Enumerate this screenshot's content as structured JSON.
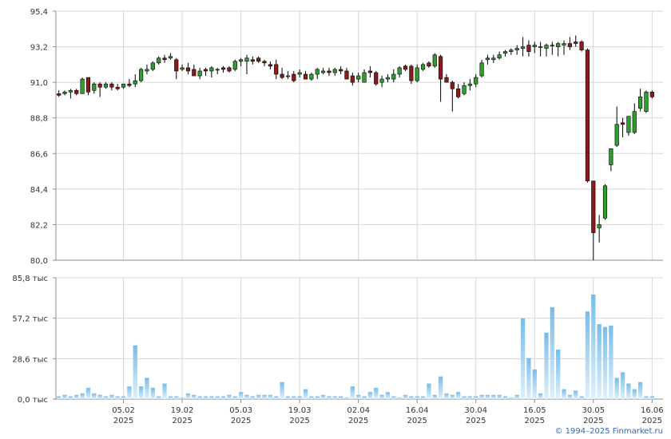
{
  "chart_data": {
    "type": "candlestick",
    "price_panel": {
      "ylim": [
        80.0,
        95.4
      ],
      "y_ticks": [
        "95,4",
        "93,2",
        "91,0",
        "88,8",
        "86,6",
        "84,4",
        "82,2",
        "80,0"
      ],
      "grid": true
    },
    "volume_panel": {
      "ylim": [
        0,
        85.8
      ],
      "y_ticks": [
        "85,8 тыс",
        "57,2 тыс",
        "28,6 тыс",
        "0,0 тыс"
      ],
      "grid": true
    },
    "x_ticks": [
      {
        "day": "05.02",
        "year": "2025",
        "index": 11
      },
      {
        "day": "19.02",
        "year": "2025",
        "index": 21
      },
      {
        "day": "05.03",
        "year": "2025",
        "index": 31
      },
      {
        "day": "19.03",
        "year": "2025",
        "index": 41
      },
      {
        "day": "02.04",
        "year": "2025",
        "index": 51
      },
      {
        "day": "16.04",
        "year": "2025",
        "index": 61
      },
      {
        "day": "30.04",
        "year": "2025",
        "index": 71
      },
      {
        "day": "16.05",
        "year": "2025",
        "index": 81
      },
      {
        "day": "30.05",
        "year": "2025",
        "index": 91
      },
      {
        "day": "16.06",
        "year": "2025",
        "index": 101
      }
    ],
    "candles": [
      [
        90.3,
        90.5,
        90.1,
        90.2
      ],
      [
        90.3,
        90.5,
        90.2,
        90.4
      ],
      [
        90.4,
        90.6,
        90.0,
        90.5
      ],
      [
        90.5,
        90.6,
        90.2,
        90.3
      ],
      [
        90.3,
        91.3,
        90.3,
        91.2
      ],
      [
        91.3,
        91.3,
        90.2,
        90.4
      ],
      [
        90.5,
        91.0,
        90.3,
        90.9
      ],
      [
        90.9,
        91.0,
        90.1,
        90.7
      ],
      [
        90.7,
        91.0,
        90.6,
        90.9
      ],
      [
        90.9,
        91.0,
        90.5,
        90.7
      ],
      [
        90.7,
        90.9,
        90.5,
        90.6
      ],
      [
        90.7,
        90.9,
        90.6,
        90.9
      ],
      [
        90.9,
        91.2,
        90.7,
        90.8
      ],
      [
        90.9,
        91.5,
        90.7,
        91.1
      ],
      [
        91.1,
        91.9,
        91.0,
        91.8
      ],
      [
        91.7,
        92.1,
        91.5,
        91.8
      ],
      [
        91.8,
        92.3,
        91.7,
        92.2
      ],
      [
        92.2,
        92.6,
        92.1,
        92.5
      ],
      [
        92.5,
        92.7,
        92.2,
        92.4
      ],
      [
        92.5,
        92.8,
        92.4,
        92.6
      ],
      [
        92.4,
        92.5,
        91.2,
        91.7
      ],
      [
        91.8,
        92.1,
        91.7,
        91.9
      ],
      [
        91.9,
        92.2,
        91.5,
        91.7
      ],
      [
        91.8,
        92.1,
        91.4,
        91.4
      ],
      [
        91.4,
        91.9,
        91.2,
        91.7
      ],
      [
        91.8,
        91.9,
        91.4,
        91.7
      ],
      [
        91.7,
        92.0,
        91.3,
        91.9
      ],
      [
        91.8,
        91.9,
        91.5,
        91.8
      ],
      [
        91.9,
        92.0,
        91.6,
        91.8
      ],
      [
        91.9,
        92.0,
        91.6,
        91.7
      ],
      [
        91.8,
        92.4,
        91.7,
        92.3
      ],
      [
        92.3,
        92.5,
        92.0,
        92.4
      ],
      [
        92.3,
        92.7,
        91.5,
        92.5
      ],
      [
        92.4,
        92.6,
        92.1,
        92.3
      ],
      [
        92.5,
        92.6,
        92.2,
        92.3
      ],
      [
        92.3,
        92.4,
        92.0,
        92.2
      ],
      [
        92.1,
        92.3,
        91.8,
        92.0
      ],
      [
        92.1,
        92.4,
        91.2,
        91.5
      ],
      [
        91.5,
        91.9,
        91.2,
        91.3
      ],
      [
        91.4,
        91.7,
        91.2,
        91.4
      ],
      [
        91.5,
        91.7,
        91.0,
        91.1
      ],
      [
        91.5,
        91.8,
        91.3,
        91.6
      ],
      [
        91.5,
        91.7,
        91.2,
        91.2
      ],
      [
        91.2,
        91.6,
        91.1,
        91.5
      ],
      [
        91.5,
        91.9,
        91.2,
        91.8
      ],
      [
        91.6,
        91.9,
        91.5,
        91.7
      ],
      [
        91.7,
        91.9,
        91.4,
        91.6
      ],
      [
        91.6,
        91.9,
        91.4,
        91.8
      ],
      [
        91.8,
        92.0,
        91.5,
        91.7
      ],
      [
        91.7,
        91.9,
        91.3,
        91.2
      ],
      [
        91.4,
        91.6,
        90.8,
        91.0
      ],
      [
        91.2,
        91.6,
        91.0,
        91.4
      ],
      [
        91.0,
        91.8,
        91.0,
        91.6
      ],
      [
        91.7,
        92.0,
        91.3,
        91.6
      ],
      [
        91.6,
        91.7,
        90.8,
        90.9
      ],
      [
        91.0,
        91.4,
        90.7,
        91.2
      ],
      [
        91.2,
        91.5,
        91.0,
        91.3
      ],
      [
        91.2,
        91.8,
        91.0,
        91.5
      ],
      [
        91.5,
        92.0,
        91.3,
        91.9
      ],
      [
        92.0,
        92.1,
        91.7,
        91.8
      ],
      [
        92.0,
        92.1,
        90.9,
        91.1
      ],
      [
        91.1,
        92.1,
        91.0,
        91.9
      ],
      [
        91.8,
        92.2,
        91.7,
        92.1
      ],
      [
        92.2,
        92.3,
        91.9,
        92.0
      ],
      [
        92.0,
        92.8,
        91.9,
        92.7
      ],
      [
        92.6,
        92.7,
        89.8,
        91.2
      ],
      [
        91.3,
        91.5,
        91.1,
        91.0
      ],
      [
        91.0,
        91.1,
        89.2,
        90.6
      ],
      [
        90.6,
        90.9,
        90.0,
        90.1
      ],
      [
        90.3,
        91.0,
        90.2,
        90.8
      ],
      [
        90.8,
        91.2,
        90.5,
        90.9
      ],
      [
        90.9,
        91.5,
        90.7,
        91.3
      ],
      [
        91.4,
        92.4,
        91.3,
        92.2
      ],
      [
        92.4,
        92.7,
        92.1,
        92.5
      ],
      [
        92.4,
        92.7,
        92.2,
        92.5
      ],
      [
        92.5,
        92.9,
        92.4,
        92.7
      ],
      [
        92.8,
        93.0,
        92.6,
        92.9
      ],
      [
        92.9,
        93.1,
        92.7,
        93.0
      ],
      [
        93.0,
        93.3,
        92.7,
        93.1
      ],
      [
        93.1,
        93.8,
        92.6,
        93.2
      ],
      [
        93.3,
        93.6,
        92.6,
        92.9
      ],
      [
        93.2,
        93.5,
        92.8,
        93.3
      ],
      [
        93.2,
        93.5,
        92.6,
        93.2
      ],
      [
        93.1,
        93.4,
        92.6,
        93.3
      ],
      [
        93.3,
        93.5,
        92.7,
        93.3
      ],
      [
        93.2,
        93.5,
        92.6,
        93.4
      ],
      [
        93.3,
        93.6,
        92.7,
        93.4
      ],
      [
        93.4,
        93.8,
        93.0,
        93.2
      ],
      [
        93.5,
        93.9,
        93.2,
        93.4
      ],
      [
        93.5,
        93.6,
        92.9,
        93.0
      ],
      [
        93.0,
        93.1,
        84.8,
        84.9
      ],
      [
        84.9,
        84.9,
        80.0,
        81.7
      ],
      [
        82.0,
        82.8,
        81.1,
        82.2
      ],
      [
        82.6,
        84.7,
        82.5,
        84.6
      ],
      [
        85.9,
        86.9,
        85.5,
        86.9
      ],
      [
        87.1,
        89.5,
        87.0,
        88.4
      ],
      [
        88.5,
        88.8,
        87.6,
        88.4
      ],
      [
        87.9,
        88.9,
        87.7,
        88.9
      ],
      [
        87.9,
        89.7,
        87.8,
        89.2
      ],
      [
        89.4,
        90.6,
        89.2,
        90.1
      ],
      [
        89.2,
        90.5,
        89.1,
        90.4
      ],
      [
        90.4,
        90.5,
        90.0,
        90.1
      ]
    ],
    "volumes": [
      2,
      3,
      2,
      3,
      4,
      8,
      4,
      3,
      2,
      3,
      2,
      2,
      9,
      38,
      9,
      15,
      8,
      2,
      11,
      2,
      2,
      1,
      4,
      3,
      2,
      2,
      2,
      2,
      2,
      3,
      2,
      5,
      3,
      2,
      3,
      3,
      3,
      2,
      12,
      2,
      2,
      2,
      7,
      2,
      2,
      3,
      2,
      2,
      2,
      1,
      9,
      3,
      2,
      5,
      8,
      3,
      5,
      2,
      1,
      3,
      2,
      2,
      2,
      11,
      3,
      16,
      4,
      3,
      5,
      2,
      2,
      2,
      3,
      3,
      3,
      3,
      2,
      1,
      3,
      57,
      29,
      21,
      4,
      47,
      65,
      35,
      7,
      3,
      6,
      2,
      62,
      74,
      53,
      51,
      52,
      15,
      19,
      11,
      7,
      12,
      2,
      2
    ],
    "colors": {
      "up": "#2e9e2e",
      "down": "#8b1a1a",
      "wick": "#000000",
      "volume_top": "#78bceb",
      "volume_bottom": "#dff0fc",
      "grid": "#d7d7d7",
      "axis": "#8c8c8c"
    }
  },
  "footer": {
    "credit": "© 1994–2025 Finmarket.ru"
  }
}
